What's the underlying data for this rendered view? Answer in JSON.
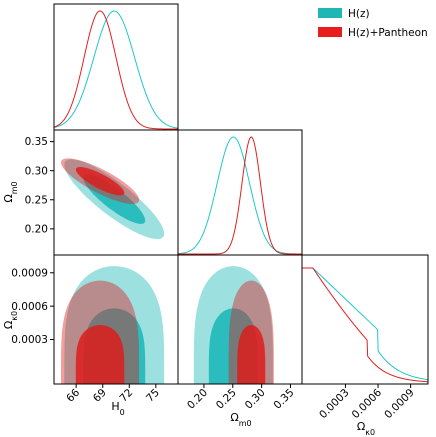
{
  "chart_data": {
    "type": "corner",
    "parameters": [
      "H0",
      "Om0",
      "Ok0"
    ],
    "axis_labels": {
      "H0": {
        "base": "H",
        "sub": "0"
      },
      "Om0": {
        "base": "Ω",
        "sub": "m0"
      },
      "Ok0": {
        "base": "Ω",
        "sub": "κ0"
      }
    },
    "ranges": {
      "H0": [
        63.5,
        77.5
      ],
      "Om0": [
        0.155,
        0.37
      ],
      "Ok0": [
        -0.0001,
        0.00106
      ]
    },
    "ticks": {
      "H0": [
        {
          "v": 66,
          "t": "66"
        },
        {
          "v": 69,
          "t": "69"
        },
        {
          "v": 72,
          "t": "72"
        },
        {
          "v": 75,
          "t": "75"
        }
      ],
      "Om0": [
        {
          "v": 0.2,
          "t": "0.20"
        },
        {
          "v": 0.25,
          "t": "0.25"
        },
        {
          "v": 0.3,
          "t": "0.30"
        },
        {
          "v": 0.35,
          "t": "0.35"
        }
      ],
      "Ok0": [
        {
          "v": 0.0003,
          "t": "0.0003"
        },
        {
          "v": 0.0006,
          "t": "0.0006"
        },
        {
          "v": 0.0009,
          "t": "0.0009"
        }
      ]
    },
    "legend": {
      "placement": "top-right",
      "entries": [
        {
          "name": "H(z)",
          "color": "#1fb6b6"
        },
        {
          "name": "H(z)+Pantheon",
          "color": "#e81e1e"
        }
      ]
    },
    "series": [
      {
        "name": "H(z)",
        "line_color": "#1fc8c8",
        "fill_color": "#12b4b4",
        "mean": {
          "H0": 70.3,
          "Om0": 0.251
        },
        "sigma": {
          "H0": 2.3,
          "Om0": 0.028
        },
        "corr_H0_Om0": -0.86,
        "Ok0_upper_95": 0.00096,
        "Ok0_upper_68": 0.00058,
        "Ok0_marginal_end": 9e-05
      },
      {
        "name": "H(z)+Pantheon",
        "line_color": "#e02020",
        "fill_color": "#e01818",
        "mean": {
          "H0": 68.7,
          "Om0": 0.282
        },
        "sigma": {
          "H0": 1.8,
          "Om0": 0.016
        },
        "corr_H0_Om0": -0.82,
        "Ok0_upper_95": 0.00083,
        "Ok0_upper_68": 0.00043,
        "Ok0_marginal_end": 1e-05
      }
    ]
  }
}
